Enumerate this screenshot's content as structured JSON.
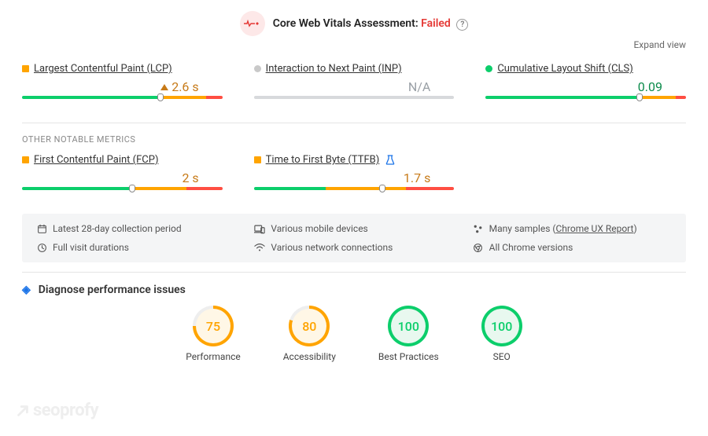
{
  "colors": {
    "good": "#0cce6b",
    "warn": "#ffa400",
    "bad": "#ff4e42",
    "grey": "#c9c9c9",
    "warn_text": "#c77a17",
    "good_text": "#0a8a4a",
    "grey_text": "#9aa0a6",
    "bad_text": "#e53935"
  },
  "header": {
    "title": "Core Web Vitals Assessment:",
    "status": "Failed",
    "status_color": "#e53935",
    "expand": "Expand view"
  },
  "metrics_primary": [
    {
      "key": "lcp",
      "name": "Largest Contentful Paint (LCP)",
      "dot_shape": "square",
      "dot_color": "#ffa400",
      "value": "2.6 s",
      "value_color": "#c77a17",
      "value_mark": "triangle",
      "segments": [
        {
          "color": "#0cce6b",
          "pct": 70
        },
        {
          "color": "#ffa400",
          "pct": 22
        },
        {
          "color": "#ff4e42",
          "pct": 8
        }
      ],
      "marker_pct": 69,
      "extra_icon": null
    },
    {
      "key": "inp",
      "name": "Interaction to Next Paint (INP)",
      "dot_shape": "circle",
      "dot_color": "#c9c9c9",
      "value": "N/A",
      "value_color": "#9aa0a6",
      "value_mark": null,
      "segments": [
        {
          "color": "#d7d9dc",
          "pct": 100
        }
      ],
      "marker_pct": null,
      "extra_icon": null
    },
    {
      "key": "cls",
      "name": "Cumulative Layout Shift (CLS)",
      "dot_shape": "circle",
      "dot_color": "#0cce6b",
      "value": "0.09",
      "value_color": "#0a8a4a",
      "value_mark": null,
      "segments": [
        {
          "color": "#0cce6b",
          "pct": 78
        },
        {
          "color": "#ffa400",
          "pct": 17
        },
        {
          "color": "#ff4e42",
          "pct": 5
        }
      ],
      "marker_pct": 77,
      "extra_icon": null
    }
  ],
  "other_label": "Other notable metrics",
  "metrics_secondary": [
    {
      "key": "fcp",
      "name": "First Contentful Paint (FCP)",
      "dot_shape": "square",
      "dot_color": "#ffa400",
      "value": "2 s",
      "value_color": "#c77a17",
      "value_mark": null,
      "segments": [
        {
          "color": "#0cce6b",
          "pct": 56
        },
        {
          "color": "#ffa400",
          "pct": 26
        },
        {
          "color": "#ff4e42",
          "pct": 18
        }
      ],
      "marker_pct": 55,
      "extra_icon": null
    },
    {
      "key": "ttfb",
      "name": "Time to First Byte (TTFB)",
      "dot_shape": "square",
      "dot_color": "#ffa400",
      "value": "1.7 s",
      "value_color": "#c77a17",
      "value_mark": null,
      "segments": [
        {
          "color": "#0cce6b",
          "pct": 36
        },
        {
          "color": "#ffa400",
          "pct": 40
        },
        {
          "color": "#ff4e42",
          "pct": 24
        }
      ],
      "marker_pct": 64,
      "extra_icon": "flask"
    }
  ],
  "info": [
    {
      "icon": "calendar",
      "text": "Latest 28-day collection period"
    },
    {
      "icon": "devices",
      "text": "Various mobile devices"
    },
    {
      "icon": "samples",
      "text_prefix": "Many samples (",
      "link": "Chrome UX Report",
      "text_suffix": ")"
    },
    {
      "icon": "clock",
      "text": "Full visit durations"
    },
    {
      "icon": "wifi",
      "text": "Various network connections"
    },
    {
      "icon": "chrome",
      "text": "All Chrome versions"
    }
  ],
  "diagnose": {
    "label": "Diagnose performance issues"
  },
  "gauges": [
    {
      "key": "performance",
      "score": 75,
      "label": "Performance",
      "color": "#ffa400",
      "pct": 75
    },
    {
      "key": "accessibility",
      "score": 80,
      "label": "Accessibility",
      "color": "#ffa400",
      "pct": 80
    },
    {
      "key": "best-practices",
      "score": 100,
      "label": "Best Practices",
      "color": "#0cce6b",
      "pct": 100
    },
    {
      "key": "seo",
      "score": 100,
      "label": "SEO",
      "color": "#0cce6b",
      "pct": 100
    }
  ],
  "watermark": "seoprofy"
}
